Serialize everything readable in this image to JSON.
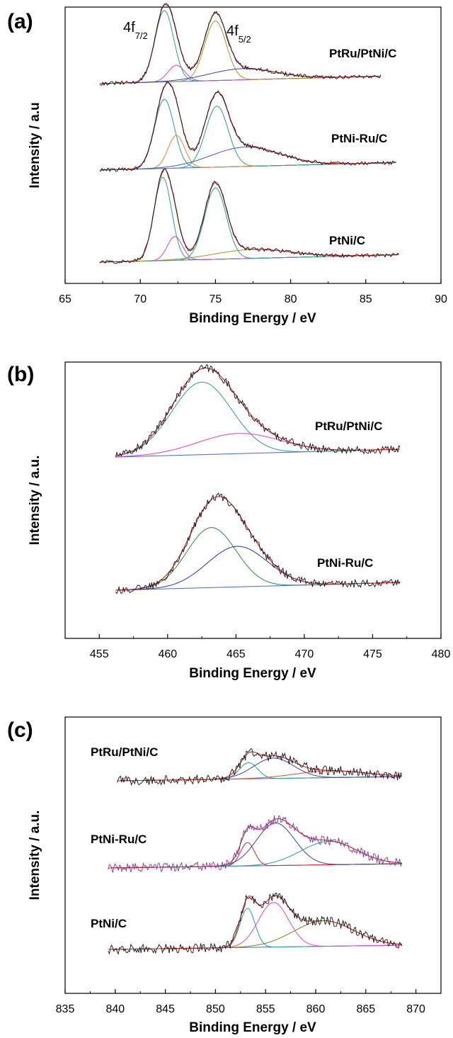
{
  "chart_data": [
    {
      "panel_label": "(a)",
      "type": "line",
      "xlabel": "Binding Energy / eV",
      "ylabel": "Intensity / a.u",
      "xlim": [
        65,
        90
      ],
      "xticks": [
        65,
        70,
        75,
        80,
        85,
        90
      ],
      "x_range_plotted": [
        67.3,
        87.2
      ],
      "annotations": [
        {
          "main": "4f",
          "sub": "7/2",
          "x": 71.6
        },
        {
          "main": "4f",
          "sub": "5/2",
          "x": 75.1
        }
      ],
      "series": [
        {
          "name": "PtRu/PtNi/C",
          "x_end": 86.0,
          "peaks": [
            {
              "center": 71.6,
              "height": 0.96,
              "width": 0.62
            },
            {
              "center": 72.4,
              "height": 0.22,
              "width": 0.55
            },
            {
              "center": 75.0,
              "height": 0.8,
              "width": 0.72
            },
            {
              "center": 76.8,
              "height": 0.15,
              "width": 2.2
            }
          ],
          "colors": [
            "#2a9d8f",
            "#cc44cc",
            "#9a9a20",
            "#3344aa"
          ]
        },
        {
          "name": "PtNi-Ru/C",
          "x_end": 87.0,
          "peaks": [
            {
              "center": 71.6,
              "height": 0.93,
              "width": 0.65
            },
            {
              "center": 72.4,
              "height": 0.44,
              "width": 0.55
            },
            {
              "center": 75.1,
              "height": 0.82,
              "width": 0.75
            },
            {
              "center": 77.0,
              "height": 0.26,
              "width": 2.3
            }
          ],
          "colors": [
            "#2a9d8f",
            "#f08020",
            "#2a9d8f",
            "#4455cc"
          ]
        },
        {
          "name": "PtNi/C",
          "x_end": 87.2,
          "peaks": [
            {
              "center": 71.5,
              "height": 1.12,
              "width": 0.58
            },
            {
              "center": 72.3,
              "height": 0.32,
              "width": 0.5
            },
            {
              "center": 75.0,
              "height": 0.96,
              "width": 0.72
            },
            {
              "center": 77.5,
              "height": 0.12,
              "width": 2.5
            }
          ],
          "colors": [
            "#2a9d8f",
            "#cc44cc",
            "#2a9d8f",
            "#9a9a20"
          ]
        }
      ]
    },
    {
      "panel_label": "(b)",
      "type": "line",
      "xlabel": "Binding Energy / eV",
      "ylabel": "Intensity / a.u.",
      "xlim": [
        452.5,
        480
      ],
      "xticks": [
        455,
        460,
        465,
        470,
        475,
        480
      ],
      "x_range_plotted": [
        456.2,
        477.0
      ],
      "series": [
        {
          "name": "PtRu/PtNi/C",
          "peaks": [
            {
              "center": 462.5,
              "height": 0.93,
              "width": 2.2
            },
            {
              "center": 465.2,
              "height": 0.26,
              "width": 3.0
            }
          ],
          "colors": [
            "#2a9d8f",
            "#cc44cc",
            "#3355cc"
          ]
        },
        {
          "name": "PtNi-Ru/C",
          "peaks": [
            {
              "center": 463.2,
              "height": 0.77,
              "width": 1.8
            },
            {
              "center": 465.1,
              "height": 0.52,
              "width": 2.2
            }
          ],
          "colors": [
            "#2a8a40",
            "#2233aa",
            "#e0306a"
          ]
        }
      ]
    },
    {
      "panel_label": "(c)",
      "type": "line",
      "xlabel": "Binding Energy / eV",
      "ylabel": "Intensity / a.u.",
      "xlim": [
        835,
        872.5
      ],
      "xticks": [
        835,
        840,
        845,
        850,
        855,
        860,
        865,
        870
      ],
      "x_range_plotted": [
        839.3,
        868.6
      ],
      "series": [
        {
          "name": "PtRu/PtNi/C",
          "x_start": 840.2,
          "peaks": [
            {
              "center": 853.3,
              "height": 0.38,
              "width": 0.9
            },
            {
              "center": 855.8,
              "height": 0.48,
              "width": 2.0
            },
            {
              "center": 861.5,
              "height": 0.16,
              "width": 3.5
            }
          ],
          "colors": [
            "#2a9d8f",
            "#3344aa",
            "#cc5522",
            "#2a8a40"
          ]
        },
        {
          "name": "PtNi-Ru/C",
          "x_start": 839.3,
          "peaks": [
            {
              "center": 853.2,
              "height": 0.55,
              "width": 0.7
            },
            {
              "center": 856.0,
              "height": 1.0,
              "width": 1.9
            },
            {
              "center": 861.3,
              "height": 0.55,
              "width": 2.8
            }
          ],
          "colors": [
            "#dd2222",
            "#3344aa",
            "#2a9d8f",
            "#a020a0"
          ]
        },
        {
          "name": "PtNi/C",
          "x_start": 839.3,
          "peaks": [
            {
              "center": 853.2,
              "height": 0.92,
              "width": 0.75
            },
            {
              "center": 855.8,
              "height": 1.05,
              "width": 1.5
            },
            {
              "center": 860.8,
              "height": 0.6,
              "width": 3.0
            }
          ],
          "colors": [
            "#2a9d8f",
            "#dd44dd",
            "#6a8a10",
            "#3344aa"
          ]
        }
      ]
    }
  ]
}
